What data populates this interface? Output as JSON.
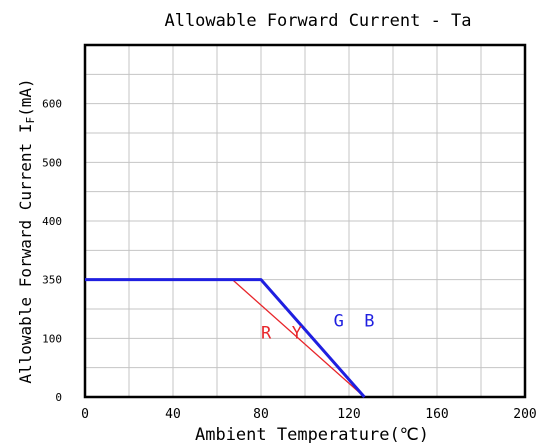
{
  "chart_data": {
    "type": "line",
    "title": "Allowable Forward Current - Ta",
    "xlabel": "Ambient Temperature(℃)",
    "ylabel": "Allowable Forward Current I",
    "ylabel_sub": "F",
    "ylabel_unit": "(mA)",
    "x_ticks": [
      0,
      40,
      80,
      120,
      160,
      200
    ],
    "y_ticks": [
      {
        "label": "0",
        "pos": 0
      },
      {
        "label": "100",
        "pos": 1
      },
      {
        "label": "350",
        "pos": 2
      },
      {
        "label": "400",
        "pos": 3
      },
      {
        "label": "500",
        "pos": 4
      },
      {
        "label": "600",
        "pos": 5
      }
    ],
    "xlim": [
      0,
      200
    ],
    "ylim_pos": [
      0,
      6
    ],
    "grid": true,
    "series": [
      {
        "name": "R Y",
        "color": "#e8262b",
        "points": [
          [
            0,
            350
          ],
          [
            67,
            350
          ],
          [
            127,
            0
          ]
        ]
      },
      {
        "name": "G B",
        "color": "#1f1fe0",
        "points": [
          [
            0,
            350
          ],
          [
            80,
            350
          ],
          [
            127,
            0
          ]
        ]
      }
    ],
    "annotations": [
      {
        "text": "R  Y",
        "x": 80,
        "y": 100,
        "color": "#e8262b"
      },
      {
        "text": "G  B",
        "x": 113,
        "y": 150,
        "color": "#1f1fe0"
      }
    ]
  }
}
